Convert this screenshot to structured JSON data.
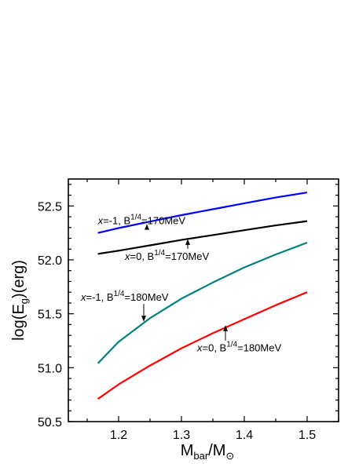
{
  "chart_data": {
    "type": "line",
    "xlabel": "M_bar/M_⊙",
    "ylabel": "log(E_g)(erg)",
    "xlim": [
      1.12,
      1.55
    ],
    "ylim": [
      50.5,
      52.75
    ],
    "x_ticks": [
      "1.2",
      "1.3",
      "1.4",
      "1.5"
    ],
    "y_ticks": [
      "50.5",
      "51.0",
      "51.5",
      "52.0",
      "52.5"
    ],
    "grid": false,
    "series": [
      {
        "color": "#0000ff",
        "x": [
          1.167,
          1.2,
          1.25,
          1.3,
          1.35,
          1.4,
          1.45,
          1.5
        ],
        "y": [
          52.25,
          52.295,
          52.355,
          52.415,
          52.47,
          52.525,
          52.578,
          52.625
        ]
      },
      {
        "color": "#000000",
        "x": [
          1.167,
          1.2,
          1.25,
          1.3,
          1.35,
          1.4,
          1.45,
          1.5
        ],
        "y": [
          52.055,
          52.085,
          52.135,
          52.185,
          52.23,
          52.275,
          52.32,
          52.36
        ]
      },
      {
        "color": "#008080",
        "x": [
          1.167,
          1.2,
          1.25,
          1.3,
          1.35,
          1.4,
          1.45,
          1.5
        ],
        "y": [
          51.04,
          51.24,
          51.46,
          51.64,
          51.79,
          51.93,
          52.05,
          52.16
        ]
      },
      {
        "color": "#ff0000",
        "x": [
          1.167,
          1.2,
          1.25,
          1.3,
          1.35,
          1.4,
          1.45,
          1.5
        ],
        "y": [
          50.71,
          50.845,
          51.02,
          51.18,
          51.32,
          51.45,
          51.58,
          51.7
        ]
      }
    ],
    "annotations": [
      {
        "prefix": "x",
        "text": "=-1, B",
        "sup": "1/4",
        "suffix": "=170MeV",
        "pos": [
          1.167,
          52.33
        ],
        "arrow_to": [
          1.245,
          52.33
        ]
      },
      {
        "prefix": "x",
        "text": "=0, B",
        "sup": "1/4",
        "suffix": "=170MeV",
        "pos": [
          1.21,
          52.0
        ],
        "arrow_to": [
          1.31,
          52.19
        ]
      },
      {
        "prefix": "x",
        "text": "=-1, B",
        "sup": "1/4",
        "suffix": "=180MeV",
        "pos": [
          1.14,
          51.62
        ],
        "arrow_to": [
          1.24,
          51.43
        ]
      },
      {
        "prefix": "x",
        "text": "=0, B",
        "sup": "1/4",
        "suffix": "=180MeV",
        "pos": [
          1.325,
          51.15
        ],
        "arrow_to": [
          1.37,
          51.39
        ]
      }
    ]
  }
}
